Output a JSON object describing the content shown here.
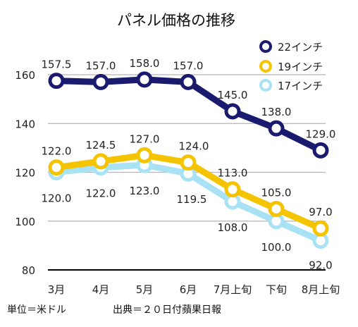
{
  "chart_data": {
    "type": "line",
    "title": "パネル価格の推移",
    "categories": [
      "3月",
      "4月",
      "5月",
      "6月",
      "7月上旬",
      "下旬",
      "8月上旬"
    ],
    "ylim": [
      80,
      160
    ],
    "yticks": [
      80,
      100,
      120,
      140,
      160
    ],
    "grid": true,
    "legend_position": "top-right",
    "series": [
      {
        "name": "22インチ",
        "color": "#1a1a6e",
        "values": [
          157.5,
          157.0,
          158.0,
          157.0,
          145.0,
          138.0,
          129.0
        ],
        "labels": [
          "157.5",
          "157.0",
          "158.0",
          "157.0",
          "145.0",
          "138.0",
          "129.0"
        ]
      },
      {
        "name": "19インチ",
        "color": "#f5c400",
        "values": [
          122.0,
          124.5,
          127.0,
          124.0,
          113.0,
          105.0,
          97.0
        ],
        "labels": [
          "122.0",
          "124.5",
          "127.0",
          "124.0",
          "113.0",
          "105.0",
          "97.0"
        ]
      },
      {
        "name": "17インチ",
        "color": "#a8e2f4",
        "values": [
          120.0,
          122.0,
          123.0,
          119.5,
          108.0,
          100.0,
          92.0
        ],
        "labels": [
          "120.0",
          "122.0",
          "123.0",
          "119.5",
          "108.0",
          "100.0",
          "92.0"
        ]
      }
    ]
  },
  "footer": {
    "unit": "単位＝米ドル",
    "source": "出典＝２０日付蘋果日報"
  }
}
